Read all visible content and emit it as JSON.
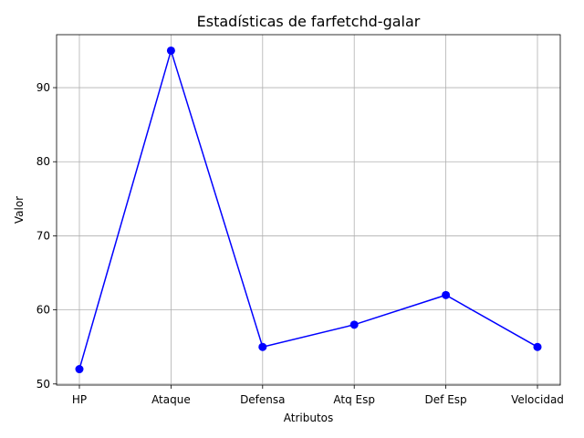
{
  "chart_data": {
    "type": "line",
    "title": "Estadísticas de farfetchd-galar",
    "xlabel": "Atributos",
    "ylabel": "Valor",
    "categories": [
      "HP",
      "Ataque",
      "Defensa",
      "Atq Esp",
      "Def Esp",
      "Velocidad"
    ],
    "series": [
      {
        "values": [
          52,
          95,
          55,
          58,
          62,
          55
        ],
        "color": "#0000ff",
        "marker": "circle"
      }
    ],
    "ylim": [
      49.85,
      97.15
    ],
    "yticks": [
      50,
      60,
      70,
      80,
      90
    ],
    "grid": true
  }
}
